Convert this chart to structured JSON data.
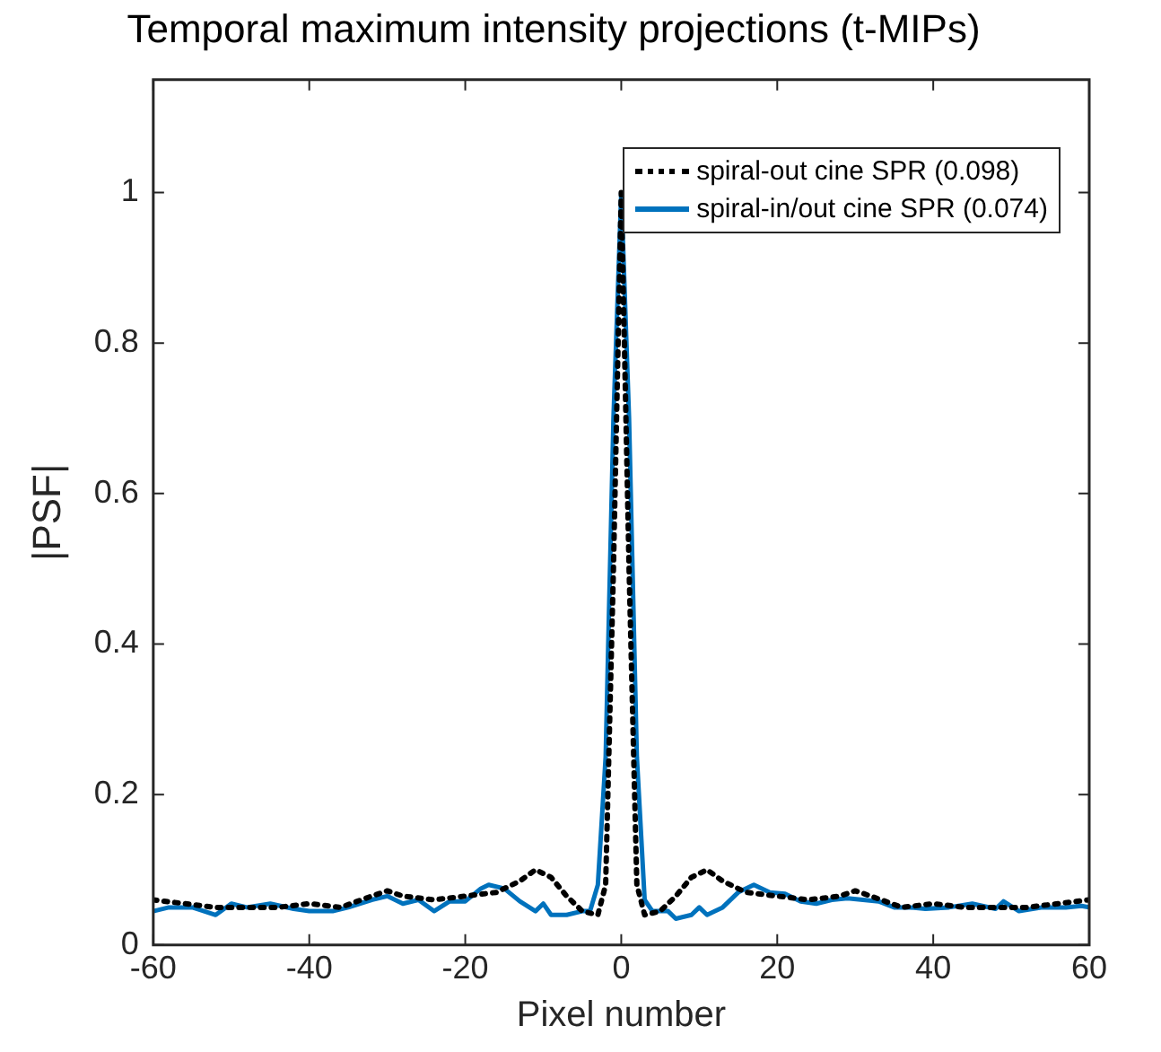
{
  "chart_data": {
    "type": "line",
    "title": "Temporal maximum intensity projections (t-MIPs)",
    "xlabel": "Pixel number",
    "ylabel": "|PSF|",
    "xlim": [
      -60,
      60
    ],
    "xticks": [
      -60,
      -40,
      -20,
      0,
      20,
      40,
      60
    ],
    "ylim": [
      0,
      1.15
    ],
    "yticks": [
      0,
      0.2,
      0.4,
      0.6,
      0.8,
      1
    ],
    "grid": false,
    "legend": "top right",
    "marker": "none",
    "series": [
      {
        "name": "spiral-out cine SPR (0.098)",
        "color": "#000000",
        "line_style": "dotted",
        "x": [
          -60,
          -56,
          -52,
          -48,
          -44,
          -40,
          -36,
          -32,
          -30,
          -28,
          -24,
          -20,
          -16,
          -13,
          -11,
          -9,
          -7,
          -5,
          -3,
          -2,
          -1,
          0,
          1,
          2,
          3,
          5,
          7,
          9,
          11,
          13,
          16,
          20,
          24,
          28,
          30,
          32,
          36,
          40,
          44,
          48,
          52,
          56,
          60
        ],
        "values": [
          0.06,
          0.055,
          0.05,
          0.05,
          0.05,
          0.055,
          0.05,
          0.065,
          0.072,
          0.065,
          0.06,
          0.065,
          0.07,
          0.085,
          0.1,
          0.09,
          0.065,
          0.045,
          0.04,
          0.08,
          0.5,
          1,
          0.5,
          0.08,
          0.04,
          0.045,
          0.065,
          0.09,
          0.1,
          0.085,
          0.07,
          0.065,
          0.06,
          0.065,
          0.072,
          0.065,
          0.05,
          0.055,
          0.05,
          0.05,
          0.05,
          0.055,
          0.06
        ]
      },
      {
        "name": "spiral-in/out cine SPR (0.074)",
        "color": "#0072bd",
        "line_style": "solid",
        "x": [
          -60,
          -58,
          -55,
          -52,
          -50,
          -48,
          -45,
          -42,
          -40,
          -37,
          -35,
          -32,
          -30,
          -28,
          -26,
          -24,
          -22,
          -20,
          -18,
          -17,
          -15,
          -13,
          -11,
          -10,
          -9,
          -7,
          -5,
          -4,
          -3,
          -2,
          -1,
          0,
          1,
          2,
          3,
          4,
          6,
          7,
          9,
          10,
          11,
          13,
          15,
          17,
          19,
          21,
          23,
          25,
          27,
          29,
          31,
          33,
          35,
          37,
          39,
          42,
          45,
          48,
          49,
          51,
          54,
          57,
          59,
          60
        ],
        "values": [
          0.045,
          0.05,
          0.05,
          0.04,
          0.055,
          0.05,
          0.055,
          0.048,
          0.045,
          0.045,
          0.05,
          0.06,
          0.065,
          0.055,
          0.06,
          0.045,
          0.058,
          0.058,
          0.075,
          0.08,
          0.075,
          0.058,
          0.045,
          0.055,
          0.04,
          0.04,
          0.045,
          0.045,
          0.08,
          0.25,
          0.7,
          1,
          0.7,
          0.25,
          0.06,
          0.045,
          0.045,
          0.035,
          0.04,
          0.05,
          0.04,
          0.05,
          0.07,
          0.08,
          0.07,
          0.068,
          0.058,
          0.055,
          0.06,
          0.062,
          0.06,
          0.058,
          0.05,
          0.05,
          0.048,
          0.05,
          0.055,
          0.048,
          0.058,
          0.045,
          0.05,
          0.05,
          0.052,
          0.05
        ]
      }
    ]
  }
}
